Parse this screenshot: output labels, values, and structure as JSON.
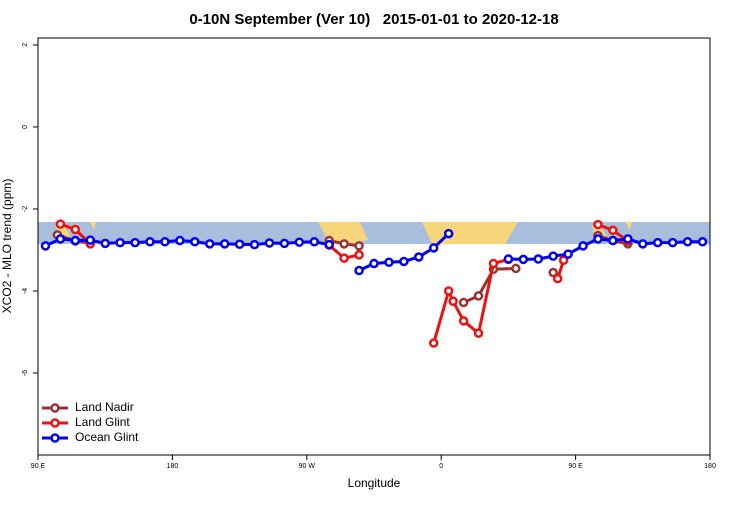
{
  "chart_data": {
    "type": "line",
    "title": "0-10N September (Ver 10)   2015-01-01 to 2020-12-18",
    "x_label": "Longitude",
    "y_label": "XCO2 - MLO trend (ppm)",
    "xlim": [
      90,
      540
    ],
    "xticks": [
      {
        "value": 90,
        "label": "90 E"
      },
      180,
      {
        "value": 270,
        "label": "90 W"
      },
      {
        "value": 360,
        "label": "0"
      },
      {
        "value": 450,
        "label": "90 E"
      },
      {
        "value": 540,
        "label": "180"
      }
    ],
    "ylim": [
      -8,
      2.17
    ],
    "yticks": [
      2,
      0,
      -2,
      -4,
      -6
    ],
    "legend": "bottom-left",
    "series": [
      {
        "name": "Land Nadir",
        "color": "#993333",
        "x": [
          103,
          115,
          125,
          135,
          285,
          295,
          305,
          315,
          375,
          385,
          395,
          410,
          420,
          435,
          445,
          465,
          475,
          485
        ],
        "values": [
          -2.63,
          -2.78,
          -2.83,
          null,
          -2.77,
          -2.85,
          -2.9,
          null,
          -4.28,
          -4.12,
          -3.47,
          -3.45,
          null,
          -3.55,
          null,
          -2.65,
          -2.77,
          -2.85
        ]
      },
      {
        "name": "Land Glint",
        "color": "#ee1111",
        "x": [
          105,
          115,
          125,
          135,
          285,
          295,
          305,
          315,
          355,
          365,
          368,
          375,
          385,
          395,
          405,
          415,
          438,
          442,
          450,
          465,
          475,
          485
        ],
        "values": [
          -2.37,
          -2.5,
          -2.85,
          null,
          -2.88,
          -3.2,
          -3.12,
          null,
          -5.27,
          -4.0,
          -4.25,
          -4.73,
          -5.03,
          -3.33,
          -3.23,
          null,
          -3.7,
          -3.25,
          null,
          -2.38,
          -2.52,
          -2.78
        ]
      },
      {
        "name": "Ocean Glint",
        "color": "#0000ee",
        "x": [
          95,
          105,
          115,
          125,
          135,
          145,
          155,
          165,
          175,
          185,
          195,
          205,
          215,
          225,
          235,
          245,
          255,
          265,
          275,
          285,
          295,
          305,
          315,
          325,
          335,
          345,
          355,
          365,
          375,
          385,
          395,
          405,
          415,
          425,
          435,
          445,
          455,
          465,
          475,
          485,
          495,
          505,
          515,
          525,
          535
        ],
        "values": [
          -2.9,
          -2.73,
          -2.77,
          -2.76,
          -2.84,
          -2.82,
          -2.82,
          -2.8,
          -2.8,
          -2.77,
          -2.8,
          -2.85,
          -2.85,
          -2.86,
          -2.87,
          -2.83,
          -2.84,
          -2.81,
          -2.8,
          -2.87,
          null,
          -3.5,
          -3.33,
          -3.3,
          -3.28,
          -3.17,
          -2.95,
          -2.6,
          null,
          null,
          null,
          -3.22,
          -3.23,
          -3.22,
          -3.15,
          -3.1,
          -2.9,
          -2.73,
          -2.77,
          -2.73,
          -2.85,
          -2.82,
          -2.82,
          -2.8,
          -2.8
        ]
      }
    ]
  }
}
